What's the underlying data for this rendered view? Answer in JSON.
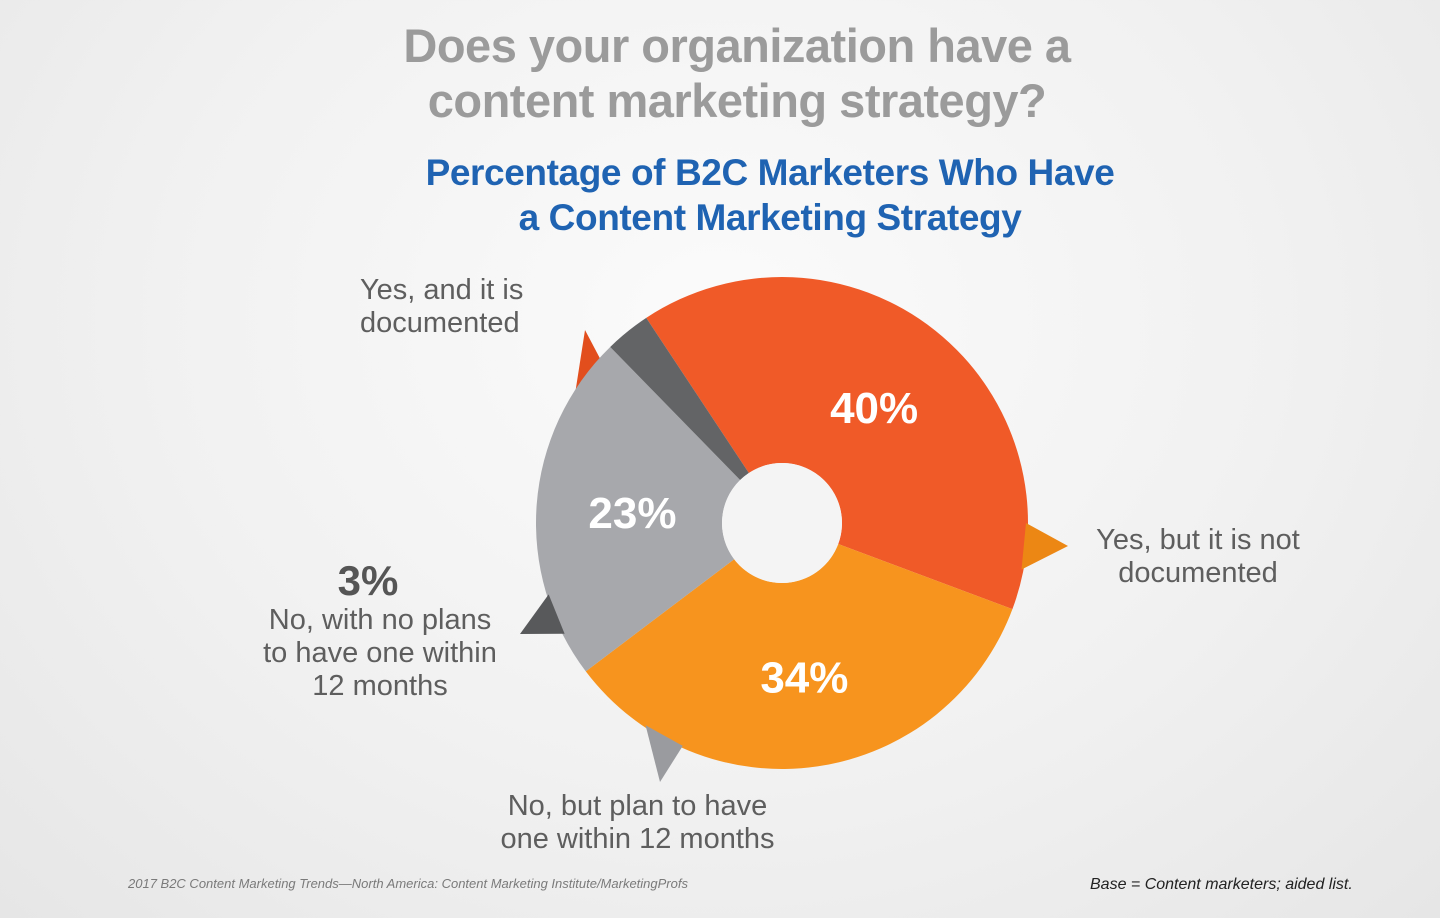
{
  "header": {
    "title_lines": [
      "Does your organization have a",
      "content marketing strategy?"
    ],
    "subtitle_lines": [
      "Percentage of B2C Marketers Who Have",
      "a Content Marketing Strategy"
    ]
  },
  "chart_data": {
    "type": "pie",
    "style": "donut",
    "slices": [
      {
        "value": 40,
        "display": "40%",
        "label_lines": [
          "Yes, and it is",
          "documented"
        ],
        "color": "#f05a28"
      },
      {
        "value": 34,
        "display": "34%",
        "label_lines": [
          "Yes, but it is not",
          "documented"
        ],
        "color": "#f7941e"
      },
      {
        "value": 23,
        "display": "23%",
        "label_lines": [
          "No, but plan to have",
          "one within 12 months"
        ],
        "color": "#a7a8ac"
      },
      {
        "value": 3,
        "display": "3%",
        "label_lines": [
          "No, with no plans",
          "to have one within",
          "12 months"
        ],
        "color": "#636466"
      }
    ]
  },
  "footer": {
    "source": "2017 B2C Content Marketing Trends—North America: Content Marketing Institute/MarketingProfs",
    "base": "Base = Content marketers; aided list."
  }
}
